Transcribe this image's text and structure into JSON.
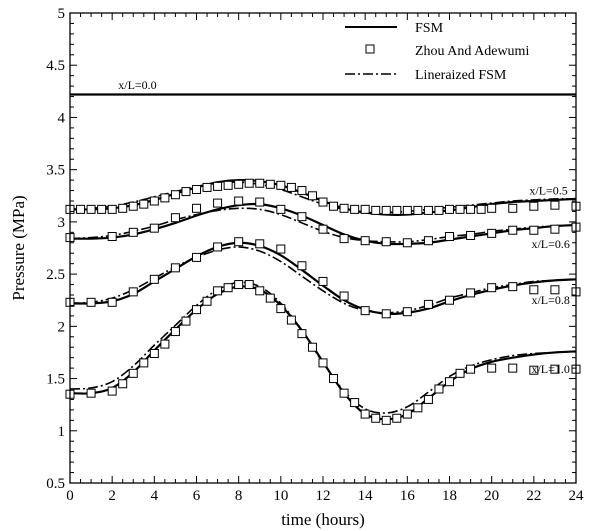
{
  "chart_data": {
    "type": "line",
    "xlabel": "time (hours)",
    "ylabel": "Pressure (MPa)",
    "xlim": [
      0,
      24
    ],
    "ylim": [
      0.5,
      5
    ],
    "x_ticks": [
      0,
      2,
      4,
      6,
      8,
      10,
      12,
      14,
      16,
      18,
      20,
      22,
      24
    ],
    "y_ticks": [
      0.5,
      1,
      1.5,
      2,
      2.5,
      3,
      3.5,
      4,
      4.5,
      5
    ],
    "x_tick_labels": [
      "0",
      "2",
      "4",
      "6",
      "8",
      "10",
      "12",
      "14",
      "16",
      "18",
      "20",
      "22",
      "24"
    ],
    "y_tick_labels": [
      "0.5",
      "1",
      "1.5",
      "2",
      "2.5",
      "3",
      "3.5",
      "4",
      "4.5",
      "5"
    ],
    "grid": false,
    "legend": {
      "position": "top-right",
      "entries": [
        {
          "label": "FSM",
          "style": "solid"
        },
        {
          "label": "Zhou And Adewumi",
          "style": "square-markers"
        },
        {
          "label": "Lineraized FSM",
          "style": "dashdot"
        }
      ]
    },
    "annotations": [
      {
        "text": "x/L=0.0",
        "x": 3.2,
        "y": 4.31
      },
      {
        "text": "x/L=0.5",
        "x": 22.7,
        "y": 3.3
      },
      {
        "text": "x/L=0.6",
        "x": 22.8,
        "y": 2.79
      },
      {
        "text": "x/L=0.8",
        "x": 22.8,
        "y": 2.25
      },
      {
        "text": "x/L=1.0",
        "x": 22.8,
        "y": 1.59
      }
    ],
    "x": [
      0,
      1,
      2,
      3,
      4,
      5,
      6,
      7,
      8,
      9,
      10,
      11,
      12,
      13,
      14,
      15,
      16,
      17,
      18,
      19,
      20,
      21,
      22,
      23,
      24
    ],
    "series": [
      {
        "name": "FSM",
        "curve": "x/L=0.0",
        "values": [
          4.22,
          4.22,
          4.22,
          4.22,
          4.22,
          4.22,
          4.22,
          4.22,
          4.22,
          4.22,
          4.22,
          4.22,
          4.22,
          4.22,
          4.22,
          4.22,
          4.22,
          4.22,
          4.22,
          4.22,
          4.22,
          4.22,
          4.22,
          4.22,
          4.22
        ]
      },
      {
        "name": "FSM",
        "curve": "x/L=0.5",
        "values": [
          3.12,
          3.12,
          3.13,
          3.16,
          3.21,
          3.27,
          3.33,
          3.38,
          3.4,
          3.39,
          3.35,
          3.28,
          3.2,
          3.13,
          3.09,
          3.07,
          3.07,
          3.09,
          3.11,
          3.14,
          3.17,
          3.19,
          3.2,
          3.21,
          3.22
        ]
      },
      {
        "name": "Lineraized FSM",
        "curve": "x/L=0.5",
        "values": [
          3.12,
          3.13,
          3.15,
          3.19,
          3.24,
          3.29,
          3.34,
          3.37,
          3.38,
          3.36,
          3.31,
          3.24,
          3.17,
          3.12,
          3.09,
          3.09,
          3.1,
          3.12,
          3.14,
          3.16,
          3.18,
          3.2,
          3.21,
          3.22,
          3.22
        ]
      },
      {
        "name": "Zhou And Adewumi",
        "curve": "x/L=0.5",
        "marker": "square",
        "x": [
          0,
          0.5,
          1,
          1.5,
          2,
          2.5,
          3,
          3.5,
          4,
          4.5,
          5,
          5.5,
          6,
          6.5,
          7,
          7.5,
          8,
          8.5,
          9,
          9.5,
          10,
          10.5,
          11,
          11.5,
          12,
          12.5,
          13,
          13.5,
          14,
          14.5,
          15,
          15.5,
          16,
          16.5,
          17,
          17.5,
          18,
          18.5,
          19,
          19.5,
          20,
          21,
          22,
          23,
          24
        ],
        "values": [
          3.12,
          3.12,
          3.12,
          3.12,
          3.12,
          3.13,
          3.15,
          3.17,
          3.2,
          3.23,
          3.26,
          3.29,
          3.31,
          3.33,
          3.34,
          3.35,
          3.36,
          3.37,
          3.37,
          3.36,
          3.35,
          3.33,
          3.3,
          3.25,
          3.19,
          3.15,
          3.13,
          3.12,
          3.12,
          3.11,
          3.11,
          3.11,
          3.11,
          3.11,
          3.11,
          3.11,
          3.12,
          3.12,
          3.12,
          3.12,
          3.13,
          3.13,
          3.15,
          3.16,
          3.15
        ]
      },
      {
        "name": "FSM",
        "curve": "x/L=0.6",
        "values": [
          2.84,
          2.84,
          2.85,
          2.88,
          2.93,
          2.99,
          3.06,
          3.12,
          3.16,
          3.17,
          3.13,
          3.06,
          2.97,
          2.88,
          2.82,
          2.79,
          2.79,
          2.8,
          2.83,
          2.86,
          2.89,
          2.92,
          2.94,
          2.96,
          2.97
        ]
      },
      {
        "name": "Lineraized FSM",
        "curve": "x/L=0.6",
        "values": [
          2.84,
          2.85,
          2.87,
          2.91,
          2.96,
          3.02,
          3.07,
          3.11,
          3.13,
          3.12,
          3.07,
          2.99,
          2.91,
          2.85,
          2.82,
          2.81,
          2.81,
          2.83,
          2.86,
          2.88,
          2.91,
          2.93,
          2.95,
          2.96,
          2.97
        ]
      },
      {
        "name": "Zhou And Adewumi",
        "curve": "x/L=0.6",
        "marker": "square",
        "x": [
          0,
          2,
          3,
          4,
          5,
          6,
          7,
          8,
          9,
          10,
          11,
          12,
          13,
          14,
          15,
          16,
          17,
          18,
          19,
          20,
          21,
          22,
          23,
          24
        ],
        "values": [
          2.85,
          2.86,
          2.9,
          2.94,
          3.04,
          3.13,
          3.18,
          3.2,
          3.19,
          3.12,
          3.05,
          2.93,
          2.84,
          2.82,
          2.81,
          2.8,
          2.82,
          2.86,
          2.87,
          2.89,
          2.92,
          2.92,
          2.93,
          2.95
        ]
      },
      {
        "name": "FSM",
        "curve": "x/L=0.8",
        "values": [
          2.22,
          2.22,
          2.24,
          2.31,
          2.43,
          2.55,
          2.67,
          2.76,
          2.8,
          2.77,
          2.68,
          2.54,
          2.39,
          2.25,
          2.16,
          2.12,
          2.13,
          2.17,
          2.24,
          2.3,
          2.35,
          2.39,
          2.42,
          2.44,
          2.45
        ]
      },
      {
        "name": "Lineraized FSM",
        "curve": "x/L=0.8",
        "values": [
          2.22,
          2.23,
          2.27,
          2.35,
          2.46,
          2.57,
          2.66,
          2.73,
          2.76,
          2.72,
          2.62,
          2.48,
          2.34,
          2.22,
          2.15,
          2.13,
          2.15,
          2.2,
          2.27,
          2.32,
          2.37,
          2.4,
          2.43,
          2.44,
          2.45
        ]
      },
      {
        "name": "Zhou And Adewumi",
        "curve": "x/L=0.8",
        "marker": "square",
        "x": [
          0,
          1,
          2,
          3,
          4,
          5,
          6,
          7,
          8,
          9,
          10,
          11,
          12,
          13,
          14,
          15,
          16,
          17,
          18,
          19,
          20,
          21,
          22,
          23,
          24
        ],
        "values": [
          2.23,
          2.23,
          2.23,
          2.33,
          2.45,
          2.56,
          2.66,
          2.76,
          2.81,
          2.79,
          2.74,
          2.58,
          2.43,
          2.29,
          2.15,
          2.12,
          2.14,
          2.21,
          2.25,
          2.32,
          2.37,
          2.38,
          2.35,
          2.35,
          2.33
        ]
      },
      {
        "name": "FSM",
        "curve": "x/L=1.0",
        "values": [
          1.36,
          1.36,
          1.41,
          1.56,
          1.77,
          1.97,
          2.16,
          2.31,
          2.38,
          2.35,
          2.2,
          1.96,
          1.66,
          1.36,
          1.16,
          1.11,
          1.16,
          1.31,
          1.47,
          1.59,
          1.66,
          1.7,
          1.73,
          1.75,
          1.76
        ]
      },
      {
        "name": "Lineraized FSM",
        "curve": "x/L=1.0",
        "values": [
          1.4,
          1.41,
          1.47,
          1.62,
          1.82,
          2.01,
          2.2,
          2.35,
          2.42,
          2.38,
          2.22,
          1.96,
          1.65,
          1.38,
          1.21,
          1.17,
          1.23,
          1.37,
          1.52,
          1.62,
          1.68,
          1.72,
          1.74,
          1.75,
          1.76
        ]
      },
      {
        "name": "Zhou And Adewumi",
        "curve": "x/L=1.0",
        "marker": "square",
        "x": [
          0,
          1,
          2,
          2.5,
          3,
          3.5,
          4,
          4.5,
          5,
          5.5,
          6,
          6.5,
          7,
          7.5,
          8,
          8.5,
          9,
          9.5,
          10,
          10.5,
          11,
          11.5,
          12,
          12.5,
          13,
          13.5,
          14,
          14.5,
          15,
          15.5,
          16,
          16.5,
          17,
          17.5,
          18,
          18.5,
          19,
          20,
          21,
          22,
          23,
          24
        ],
        "values": [
          1.35,
          1.36,
          1.38,
          1.45,
          1.55,
          1.65,
          1.74,
          1.83,
          1.95,
          2.05,
          2.16,
          2.24,
          2.34,
          2.37,
          2.4,
          2.4,
          2.34,
          2.27,
          2.17,
          2.06,
          1.93,
          1.8,
          1.65,
          1.5,
          1.36,
          1.27,
          1.16,
          1.12,
          1.1,
          1.12,
          1.16,
          1.22,
          1.3,
          1.4,
          1.47,
          1.55,
          1.59,
          1.6,
          1.6,
          1.58,
          1.59,
          1.59
        ]
      }
    ]
  }
}
